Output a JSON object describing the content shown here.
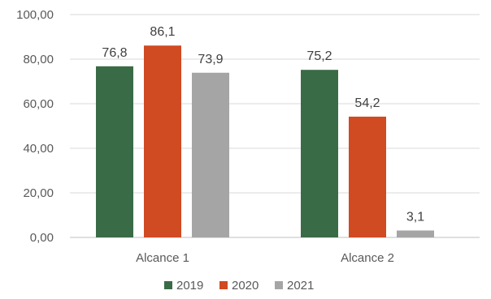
{
  "chart_data": {
    "type": "bar",
    "categories": [
      "Alcance 1",
      "Alcance 2"
    ],
    "series": [
      {
        "name": "2019",
        "values": [
          76.8,
          75.2
        ],
        "labels": [
          "76,8",
          "75,2"
        ],
        "color": "#3a6b47"
      },
      {
        "name": "2020",
        "values": [
          86.1,
          54.2
        ],
        "labels": [
          "86,1",
          "54,2"
        ],
        "color": "#d04a22"
      },
      {
        "name": "2021",
        "values": [
          73.9,
          3.1
        ],
        "labels": [
          "73,9",
          "3,1"
        ],
        "color": "#a5a5a5"
      }
    ],
    "ylim": [
      0,
      100
    ],
    "yticks": [
      0,
      20,
      40,
      60,
      80,
      100
    ],
    "ytick_labels": [
      "0,00",
      "20,00",
      "40,00",
      "60,00",
      "80,00",
      "100,00"
    ],
    "grid": true,
    "legend_position": "bottom",
    "title": "",
    "xlabel": "",
    "ylabel": "",
    "colors": {
      "grid": "#d9d9d9",
      "axis": "#bfbfbf",
      "text": "#595959"
    }
  }
}
